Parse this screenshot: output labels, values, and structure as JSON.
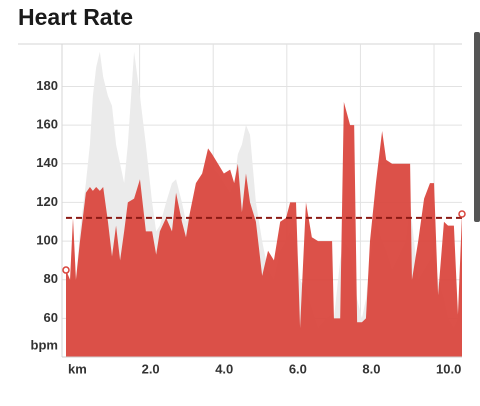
{
  "chart_data": {
    "type": "area",
    "title": "Heart Rate",
    "y_unit": "bpm",
    "x_unit": "km",
    "x": [
      0,
      0.11,
      0.19,
      0.27,
      0.38,
      0.54,
      0.65,
      0.73,
      0.82,
      0.92,
      1.01,
      1.14,
      1.25,
      1.36,
      1.47,
      1.58,
      1.68,
      1.85,
      2.01,
      2.17,
      2.34,
      2.45,
      2.55,
      2.72,
      2.88,
      2.99,
      3.15,
      3.26,
      3.37,
      3.53,
      3.7,
      3.86,
      3.97,
      4.13,
      4.29,
      4.46,
      4.57,
      4.67,
      4.78,
      4.89,
      5.0,
      5.16,
      5.33,
      5.49,
      5.65,
      5.82,
      5.98,
      6.09,
      6.25,
      6.36,
      6.52,
      6.68,
      6.85,
      7.07,
      7.23,
      7.28,
      7.45,
      7.55,
      7.72,
      7.83,
      7.91,
      8.04,
      8.15,
      8.26,
      8.42,
      8.59,
      8.7,
      8.86,
      9.24,
      9.35,
      9.4,
      9.57,
      9.73,
      9.89,
      10.0,
      10.11,
      10.27,
      10.38,
      10.54,
      10.65,
      10.76
    ],
    "series": [
      {
        "color": "#ebebeb",
        "values": [
          85,
          80,
          110,
          80,
          105,
          130,
          150,
          175,
          190,
          198,
          185,
          175,
          170,
          150,
          140,
          130,
          150,
          198,
          175,
          150,
          120,
          105,
          108,
          120,
          130,
          132,
          120,
          110,
          115,
          125,
          135,
          140,
          138,
          135,
          130,
          125,
          130,
          145,
          150,
          160,
          155,
          120,
          100,
          85,
          80,
          95,
          100,
          105,
          100,
          80,
          75,
          65,
          55,
          60,
          62,
          60,
          90,
          100,
          95,
          80,
          70,
          60,
          70,
          90,
          110,
          100,
          95,
          85,
          100,
          120,
          110,
          80,
          85,
          90,
          95,
          80,
          70,
          60,
          55,
          60,
          100
        ]
      },
      {
        "color": "#d9443b",
        "values": [
          85,
          80,
          112,
          80,
          100,
          125,
          128,
          126,
          128,
          126,
          128,
          110,
          92,
          108,
          90,
          105,
          120,
          122,
          132,
          105,
          105,
          93,
          105,
          112,
          105,
          125,
          110,
          102,
          115,
          130,
          135,
          148,
          145,
          140,
          135,
          137,
          130,
          140,
          115,
          135,
          120,
          110,
          82,
          95,
          90,
          110,
          112,
          120,
          120,
          55,
          120,
          102,
          100,
          100,
          100,
          60,
          60,
          172,
          160,
          160,
          58,
          58,
          60,
          100,
          130,
          157,
          142,
          140,
          140,
          140,
          80,
          100,
          122,
          130,
          130,
          72,
          110,
          108,
          108,
          62,
          114
        ]
      }
    ],
    "average": 112,
    "average_color": "#8b1a14",
    "xlim": [
      0,
      10.76
    ],
    "ylim": [
      40,
      202
    ],
    "xticks": [
      {
        "value": 2,
        "label": "2.0"
      },
      {
        "value": 4,
        "label": "4.0"
      },
      {
        "value": 6,
        "label": "6.0"
      },
      {
        "value": 8,
        "label": "8.0"
      },
      {
        "value": 10,
        "label": "10.0"
      }
    ],
    "yticks": [
      60,
      80,
      100,
      120,
      140,
      160,
      180
    ],
    "grid": true
  }
}
